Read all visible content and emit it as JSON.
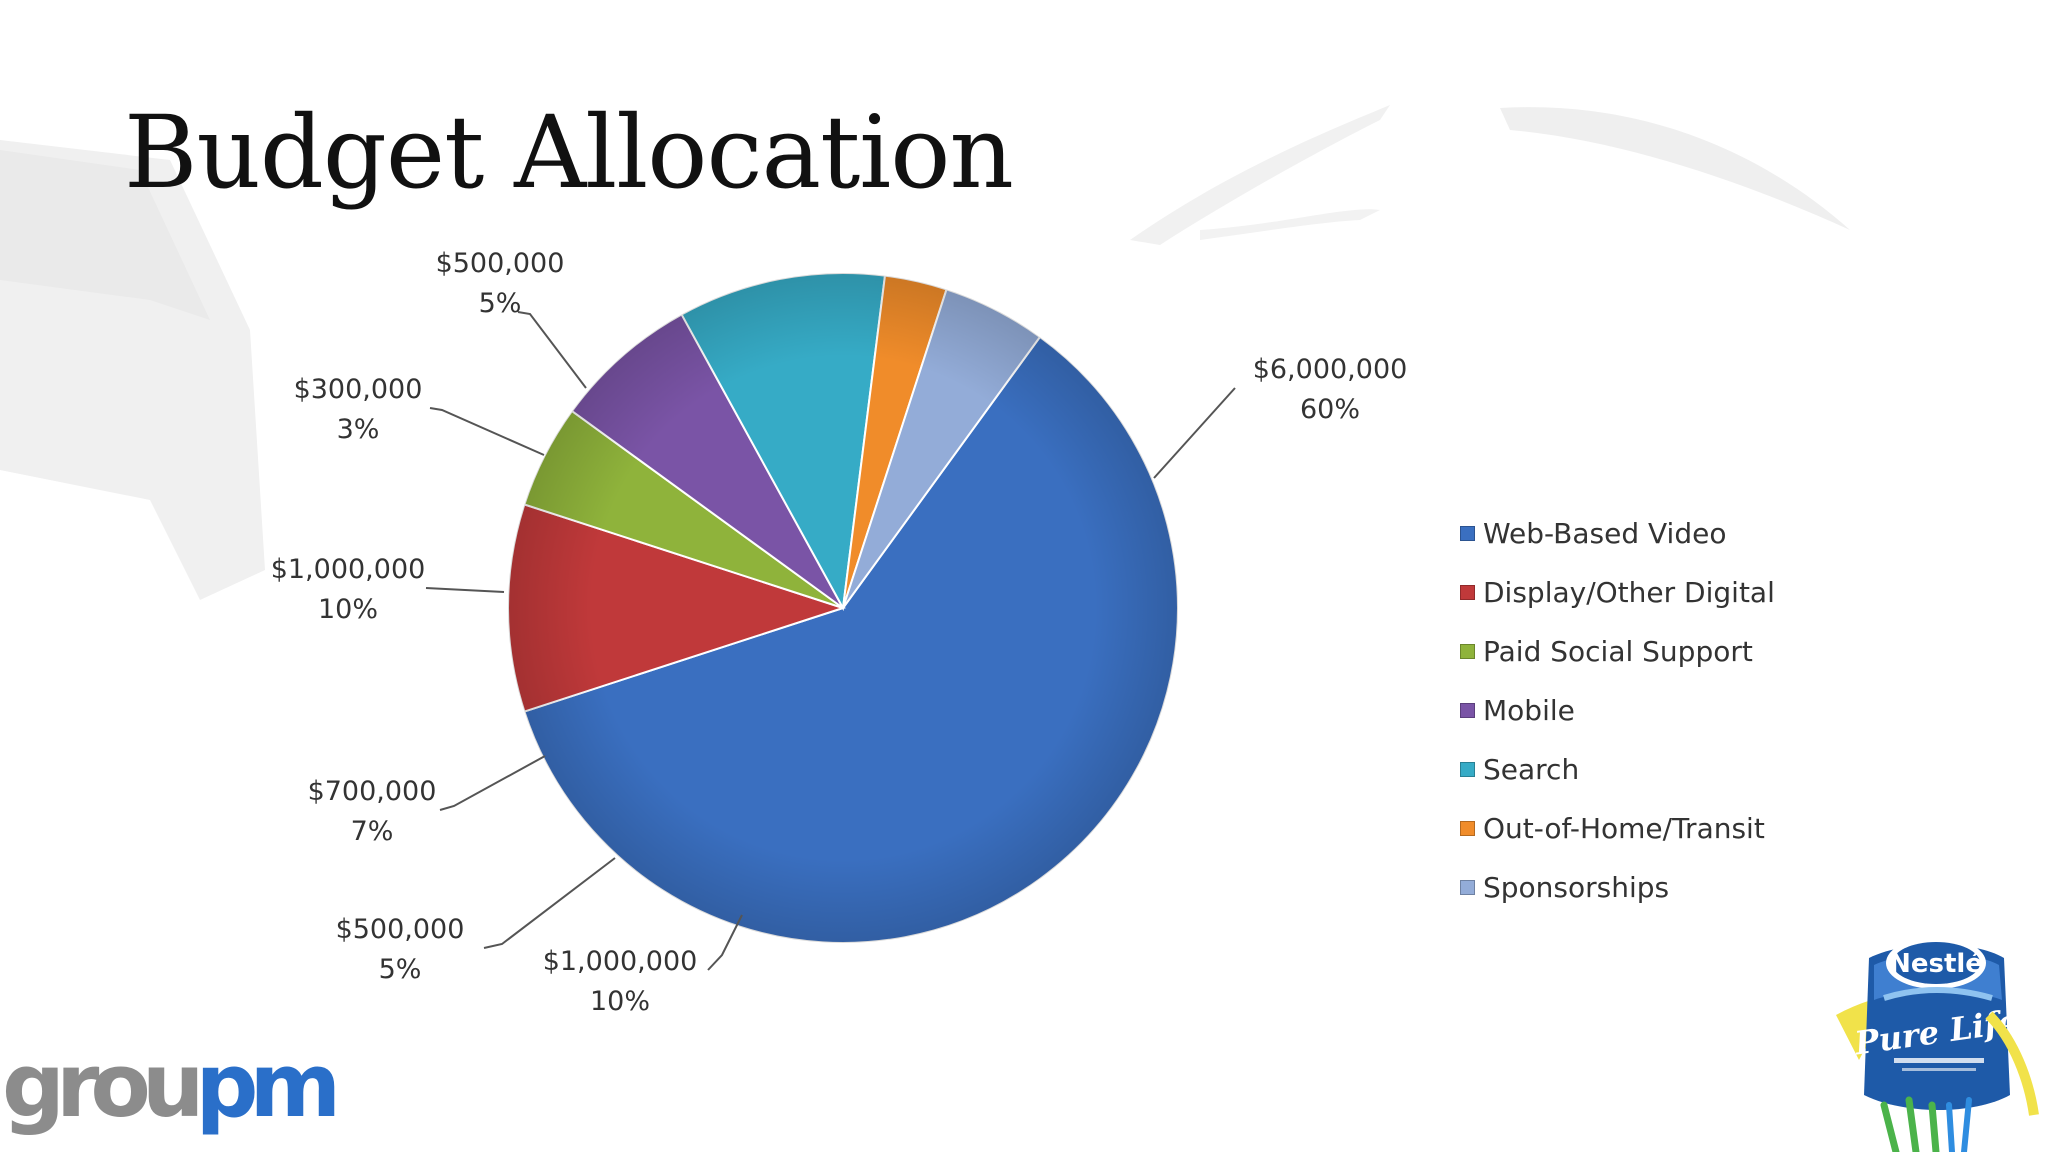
{
  "slide": {
    "title": "Budget Allocation"
  },
  "colors": {
    "web_based_video": "#3a6fc0",
    "display_other_digital": "#c0393a",
    "paid_social_support": "#8fb33b",
    "mobile": "#7a54a6",
    "search": "#36abc6",
    "out_of_home_transit": "#f08c2a",
    "sponsorships": "#93acd8",
    "groupm_blue": "#2a6fc9",
    "nestle_blue": "#1e5aa8"
  },
  "chart_data": {
    "type": "pie",
    "categories": [
      "Web-Based Video",
      "Display/Other Digital",
      "Paid Social Support",
      "Mobile",
      "Search",
      "Out-of-Home/Transit",
      "Sponsorships"
    ],
    "values": [
      6000000,
      1000000,
      500000,
      700000,
      1000000,
      300000,
      500000
    ],
    "data_labels": [
      {
        "amount": "$6,000,000",
        "percent": "60%"
      },
      {
        "amount": "$1,000,000",
        "percent": "10%"
      },
      {
        "amount": "$500,000",
        "percent": "5%"
      },
      {
        "amount": "$700,000",
        "percent": "7%"
      },
      {
        "amount": "$1,000,000",
        "percent": "10%"
      },
      {
        "amount": "$300,000",
        "percent": "3%"
      },
      {
        "amount": "$500,000",
        "percent": "5%"
      }
    ],
    "legend_position": "right",
    "start_angle": "slice boundary at about 11 o'clock, clockwise"
  },
  "logos": {
    "groupm_part1": "grou",
    "groupm_part2": "pm",
    "nestle_brand": "Nestlé",
    "nestle_product": "Pure Life"
  }
}
